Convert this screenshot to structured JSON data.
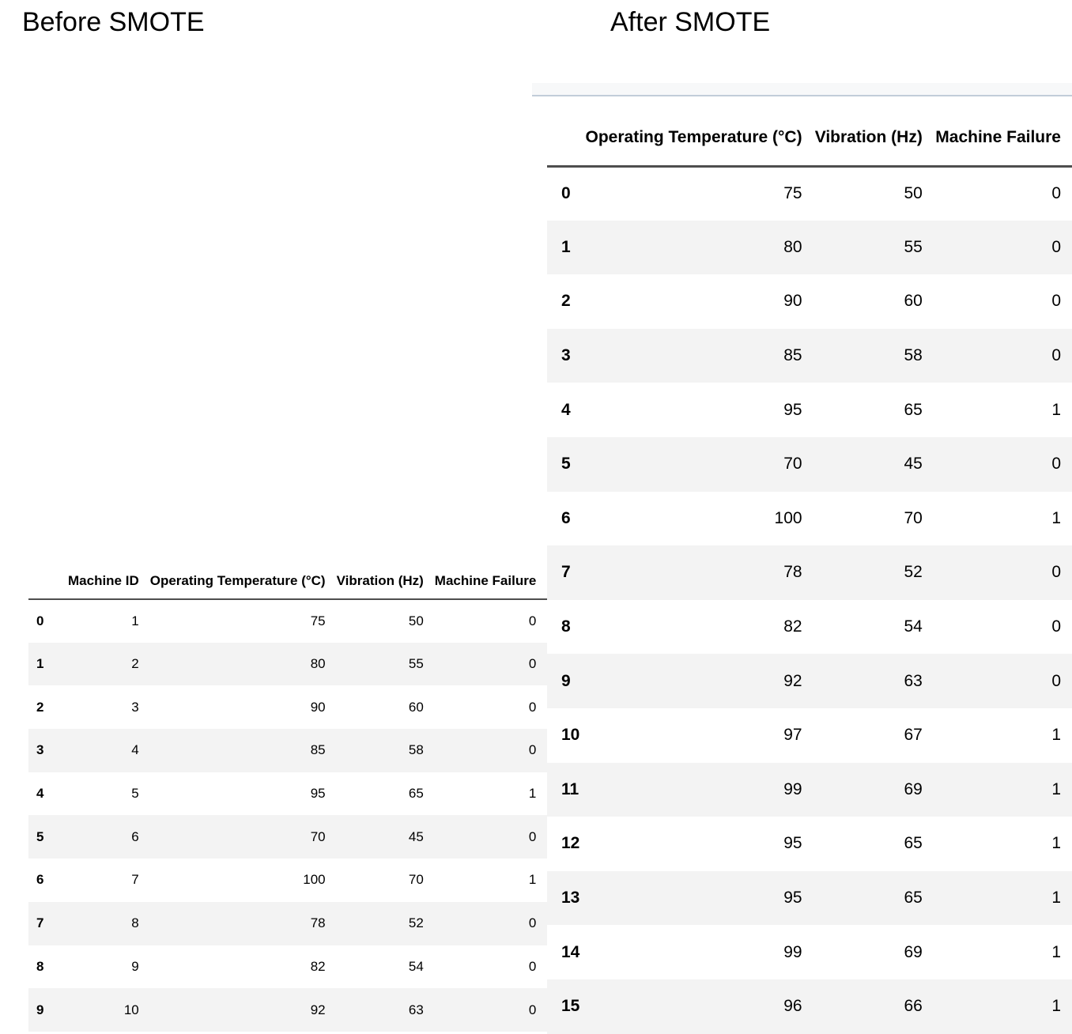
{
  "titles": {
    "before": "Before SMOTE",
    "after": "After SMOTE"
  },
  "colors": {
    "stripe": "#f3f3f3",
    "header_border": "#4e4e4e",
    "topbar_bg": "#f7f8f9",
    "topbar_border": "#c2cdd9",
    "text": "#000000"
  },
  "before_table": {
    "columns": [
      "Machine ID",
      "Operating Temperature (°C)",
      "Vibration (Hz)",
      "Machine Failure"
    ],
    "rows": [
      {
        "index": "0",
        "machine_id": "1",
        "temp": "75",
        "vibration": "50",
        "failure": "0"
      },
      {
        "index": "1",
        "machine_id": "2",
        "temp": "80",
        "vibration": "55",
        "failure": "0"
      },
      {
        "index": "2",
        "machine_id": "3",
        "temp": "90",
        "vibration": "60",
        "failure": "0"
      },
      {
        "index": "3",
        "machine_id": "4",
        "temp": "85",
        "vibration": "58",
        "failure": "0"
      },
      {
        "index": "4",
        "machine_id": "5",
        "temp": "95",
        "vibration": "65",
        "failure": "1"
      },
      {
        "index": "5",
        "machine_id": "6",
        "temp": "70",
        "vibration": "45",
        "failure": "0"
      },
      {
        "index": "6",
        "machine_id": "7",
        "temp": "100",
        "vibration": "70",
        "failure": "1"
      },
      {
        "index": "7",
        "machine_id": "8",
        "temp": "78",
        "vibration": "52",
        "failure": "0"
      },
      {
        "index": "8",
        "machine_id": "9",
        "temp": "82",
        "vibration": "54",
        "failure": "0"
      },
      {
        "index": "9",
        "machine_id": "10",
        "temp": "92",
        "vibration": "63",
        "failure": "0"
      }
    ]
  },
  "after_table": {
    "columns": [
      "Operating Temperature (°C)",
      "Vibration (Hz)",
      "Machine Failure"
    ],
    "rows": [
      {
        "index": "0",
        "temp": "75",
        "vibration": "50",
        "failure": "0"
      },
      {
        "index": "1",
        "temp": "80",
        "vibration": "55",
        "failure": "0"
      },
      {
        "index": "2",
        "temp": "90",
        "vibration": "60",
        "failure": "0"
      },
      {
        "index": "3",
        "temp": "85",
        "vibration": "58",
        "failure": "0"
      },
      {
        "index": "4",
        "temp": "95",
        "vibration": "65",
        "failure": "1"
      },
      {
        "index": "5",
        "temp": "70",
        "vibration": "45",
        "failure": "0"
      },
      {
        "index": "6",
        "temp": "100",
        "vibration": "70",
        "failure": "1"
      },
      {
        "index": "7",
        "temp": "78",
        "vibration": "52",
        "failure": "0"
      },
      {
        "index": "8",
        "temp": "82",
        "vibration": "54",
        "failure": "0"
      },
      {
        "index": "9",
        "temp": "92",
        "vibration": "63",
        "failure": "0"
      },
      {
        "index": "10",
        "temp": "97",
        "vibration": "67",
        "failure": "1"
      },
      {
        "index": "11",
        "temp": "99",
        "vibration": "69",
        "failure": "1"
      },
      {
        "index": "12",
        "temp": "95",
        "vibration": "65",
        "failure": "1"
      },
      {
        "index": "13",
        "temp": "95",
        "vibration": "65",
        "failure": "1"
      },
      {
        "index": "14",
        "temp": "99",
        "vibration": "69",
        "failure": "1"
      },
      {
        "index": "15",
        "temp": "96",
        "vibration": "66",
        "failure": "1"
      }
    ]
  }
}
